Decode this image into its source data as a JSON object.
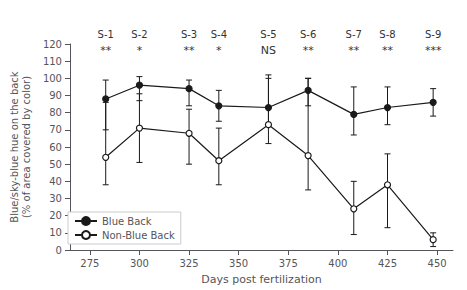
{
  "chart_data": {
    "type": "line",
    "x": [
      283,
      300,
      325,
      340,
      365,
      385,
      408,
      425,
      448
    ],
    "series": [
      {
        "name": "Blue Back",
        "color": "#1a1a1a",
        "marker": "circle",
        "line_style": "solid",
        "values": [
          88,
          96,
          94,
          84,
          83,
          93,
          79,
          83,
          86
        ],
        "err_low": [
          18,
          9,
          10,
          9,
          10,
          9,
          12,
          10,
          8
        ],
        "err_high": [
          11,
          5,
          5,
          9,
          17,
          7,
          16,
          12,
          8
        ]
      },
      {
        "name": "Non-Blue Back",
        "color": "#1a1a1a",
        "marker": "open circle",
        "line_style": "solid",
        "values": [
          54,
          71,
          68,
          52,
          73,
          55,
          24,
          38,
          6
        ],
        "err_low": [
          16,
          20,
          18,
          14,
          11,
          20,
          15,
          25,
          4
        ],
        "err_high": [
          32,
          20,
          14,
          19,
          29,
          45,
          16,
          18,
          4
        ]
      }
    ],
    "xlabel": "Days post fertilization",
    "ylabel": "Blue/sky-blue hue on the back\n(% of area covered by color)",
    "xlim": [
      265,
      458
    ],
    "xticks": [
      275,
      300,
      325,
      350,
      375,
      400,
      425,
      450
    ],
    "ylim": [
      0,
      120
    ],
    "yticks": [
      0,
      10,
      20,
      30,
      40,
      50,
      60,
      70,
      80,
      90,
      100,
      110,
      120
    ],
    "annotations": [
      {
        "x": 283,
        "text": "S-1"
      },
      {
        "x": 300,
        "text": "S-2"
      },
      {
        "x": 325,
        "text": "S-3"
      },
      {
        "x": 340,
        "text": "S-4"
      },
      {
        "x": 365,
        "text": "S-5"
      },
      {
        "x": 385,
        "text": "S-6"
      },
      {
        "x": 408,
        "text": "S-7"
      },
      {
        "x": 425,
        "text": "S-8"
      },
      {
        "x": 448,
        "text": "S-9"
      },
      {
        "x": 283,
        "y": 113,
        "text": "**"
      },
      {
        "x": 300,
        "y": 113,
        "text": "*"
      },
      {
        "x": 325,
        "y": 113,
        "text": "**"
      },
      {
        "x": 340,
        "y": 113,
        "text": "*"
      },
      {
        "x": 365,
        "y": 113,
        "text": "NS"
      },
      {
        "x": 385,
        "y": 113,
        "text": "**"
      },
      {
        "x": 408,
        "y": 113,
        "text": "**"
      },
      {
        "x": 425,
        "y": 113,
        "text": "**"
      },
      {
        "x": 448,
        "y": 113,
        "text": "***"
      }
    ],
    "legend": "lower left",
    "grid": false
  }
}
